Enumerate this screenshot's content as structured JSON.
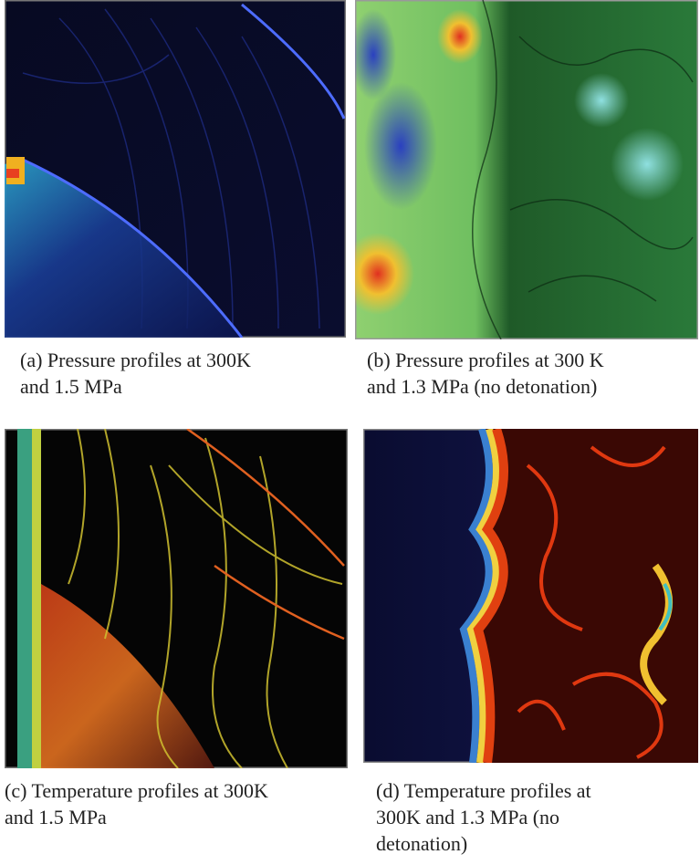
{
  "figure": {
    "panels": [
      {
        "caption": [
          "(a) Pressure profiles at 300K",
          "and 1.5 MPa"
        ]
      },
      {
        "caption": [
          "(b) Pressure profiles at 300 K",
          "and 1.3 MPa (no detonation)"
        ]
      },
      {
        "caption": [
          "(c) Temperature profiles at 300K",
          "and 1.5 MPa"
        ]
      },
      {
        "caption": [
          "(d) Temperature profiles at",
          "300K and 1.3 MPa (no",
          "detonation)"
        ]
      }
    ]
  }
}
